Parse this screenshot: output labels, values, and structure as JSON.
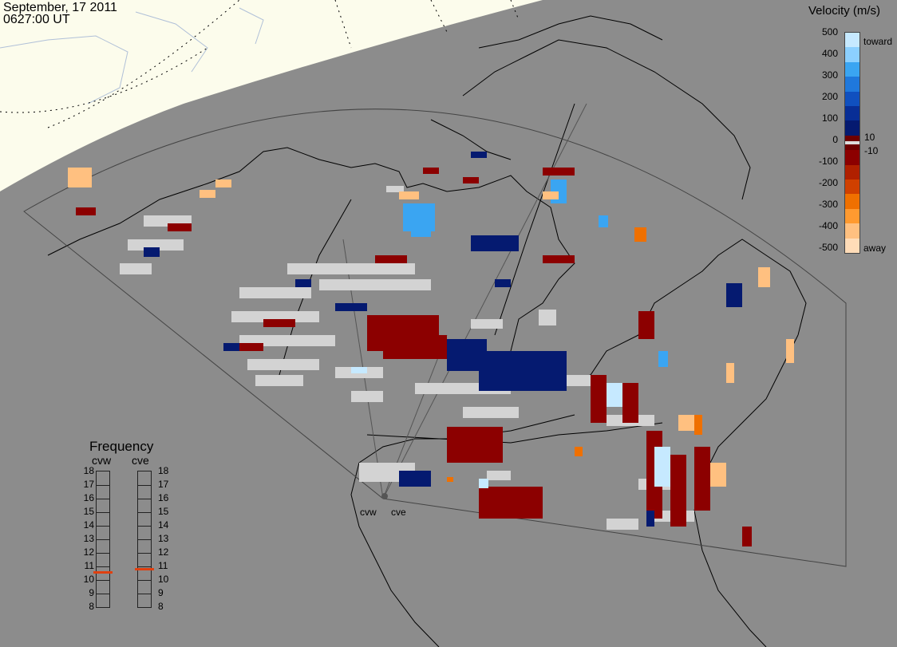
{
  "header": {
    "date": "September, 17 2011",
    "time": "0627:00 UT"
  },
  "colorbar": {
    "title": "Velocity (m/s)",
    "top_label": "toward",
    "bottom_label": "away",
    "ticks": [
      "500",
      "400",
      "300",
      "200",
      "100",
      "0",
      "-100",
      "-200",
      "-300",
      "-400",
      "-500"
    ],
    "inner_ticks": [
      "10",
      "-10"
    ],
    "colors": [
      "#c6e9ff",
      "#8cd0ff",
      "#3aa5f2",
      "#1f78dc",
      "#1050bf",
      "#082e96",
      "#051a70",
      "#6e0000",
      "#8c0000",
      "#b02000",
      "#d04000",
      "#ef7000",
      "#ff9a30",
      "#ffc080",
      "#ffdcb8"
    ]
  },
  "frequency": {
    "title": "Frequency",
    "radar_west": "cvw",
    "radar_east": "cve",
    "ticks": [
      "18",
      "17",
      "16",
      "15",
      "14",
      "13",
      "12",
      "11",
      "10",
      "9",
      "8"
    ],
    "west_mhz": 10.6,
    "east_mhz": 10.8,
    "marker_color": "#e04010"
  },
  "radars": {
    "west_label": "cvw",
    "east_label": "cve"
  },
  "style": {
    "background": "#8c8c8c",
    "daylight": "#fcfcec",
    "ground_scatter": "#d3d3d3"
  }
}
